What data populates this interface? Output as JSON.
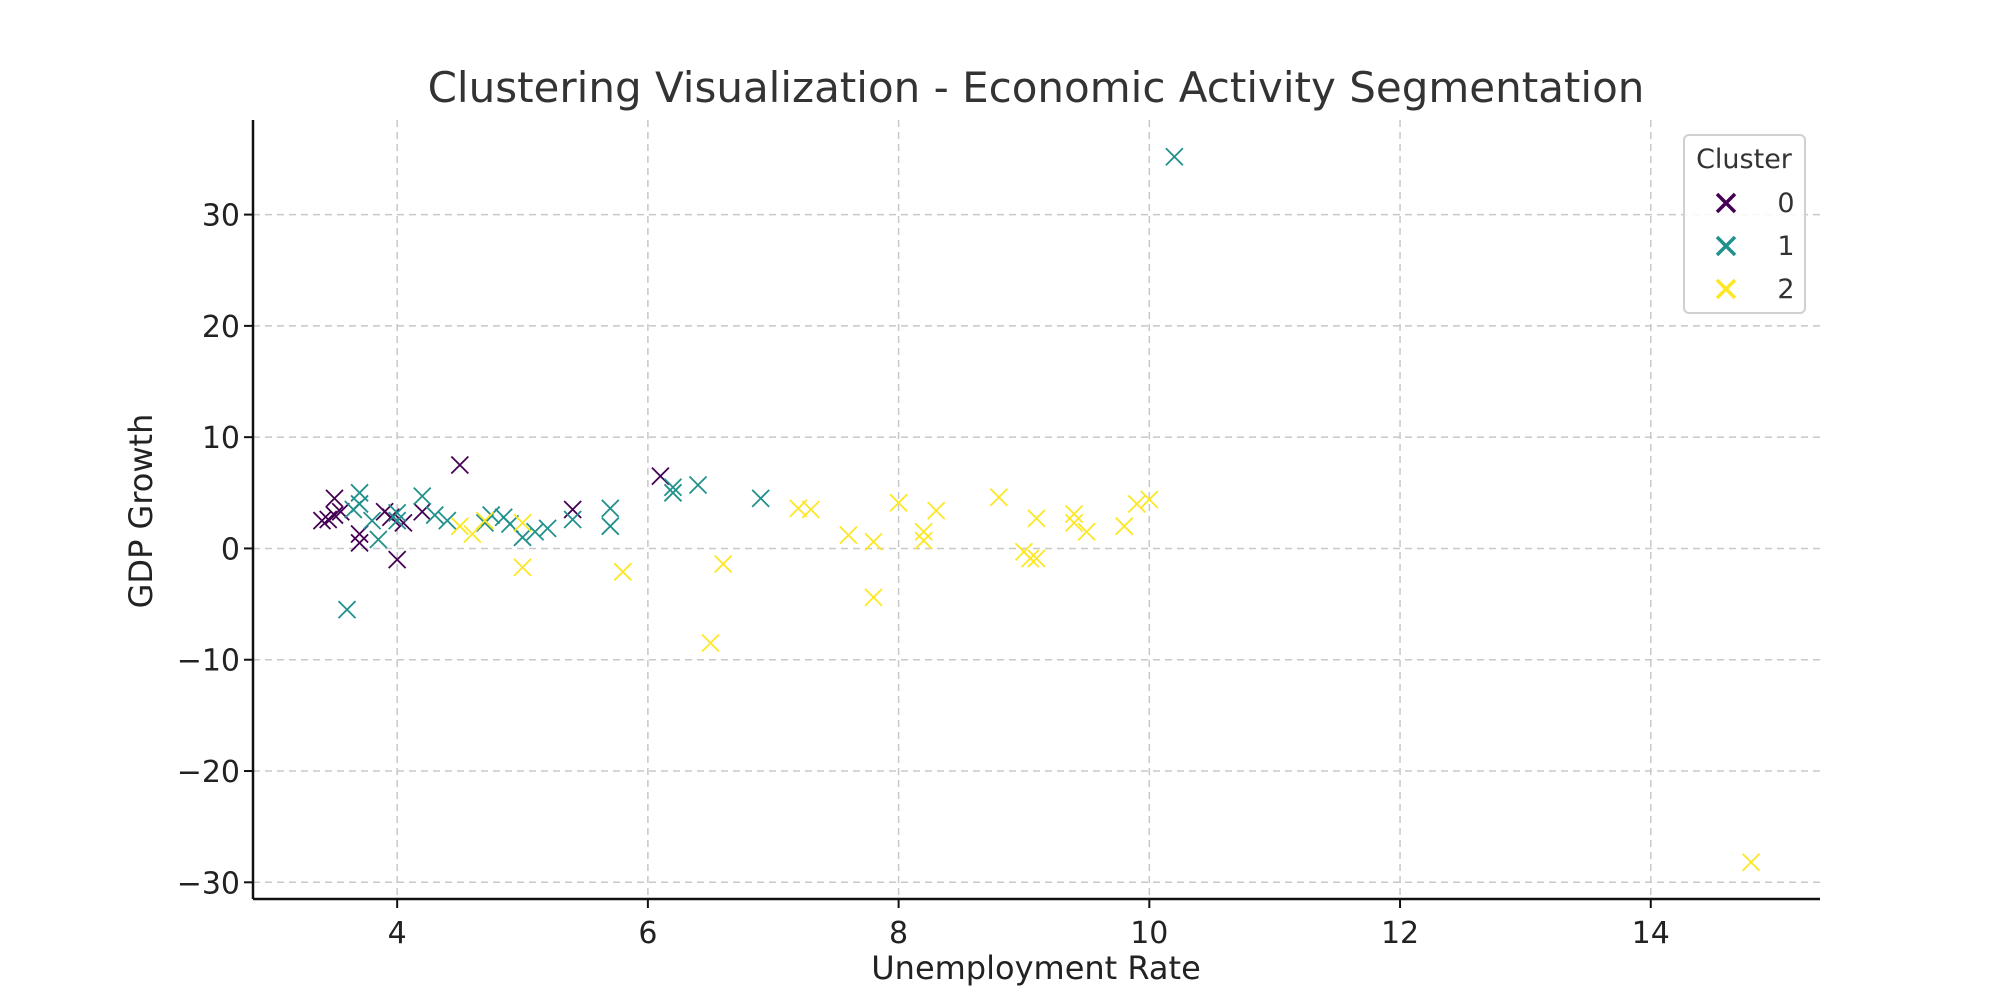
{
  "chart_data": {
    "type": "scatter",
    "title": "Clustering Visualization - Economic Activity Segmentation",
    "xlabel": "Unemployment Rate",
    "ylabel": "GDP Growth",
    "xlim": [
      2.85,
      15.35
    ],
    "ylim": [
      -31.5,
      38.5
    ],
    "xticks": [
      4,
      6,
      8,
      10,
      12,
      14
    ],
    "yticks": [
      -30,
      -20,
      -10,
      0,
      10,
      20,
      30
    ],
    "xtick_labels": [
      "4",
      "6",
      "8",
      "10",
      "12",
      "14"
    ],
    "ytick_labels": [
      "−30",
      "−20",
      "−10",
      "0",
      "10",
      "20",
      "30"
    ],
    "grid": true,
    "marker": "x",
    "legend": {
      "title": "Cluster",
      "position": "top-right"
    },
    "series": [
      {
        "name": "0",
        "color": "#440154",
        "points": [
          [
            3.4,
            2.5
          ],
          [
            3.45,
            2.6
          ],
          [
            3.5,
            4.5
          ],
          [
            3.5,
            3.0
          ],
          [
            3.55,
            3.3
          ],
          [
            3.7,
            0.5
          ],
          [
            3.7,
            1.3
          ],
          [
            3.9,
            3.3
          ],
          [
            3.95,
            2.8
          ],
          [
            4.0,
            -1.0
          ],
          [
            4.05,
            2.3
          ],
          [
            4.2,
            3.3
          ],
          [
            4.5,
            7.5
          ],
          [
            5.4,
            3.5
          ],
          [
            6.1,
            6.5
          ]
        ]
      },
      {
        "name": "1",
        "color": "#21918c",
        "points": [
          [
            3.6,
            -5.5
          ],
          [
            3.65,
            3.5
          ],
          [
            3.7,
            5.0
          ],
          [
            3.7,
            4.0
          ],
          [
            3.8,
            2.5
          ],
          [
            3.85,
            0.8
          ],
          [
            4.0,
            2.5
          ],
          [
            4.0,
            3.2
          ],
          [
            4.2,
            4.7
          ],
          [
            4.3,
            3.0
          ],
          [
            4.4,
            2.5
          ],
          [
            4.7,
            2.3
          ],
          [
            4.75,
            3.0
          ],
          [
            4.85,
            2.8
          ],
          [
            4.9,
            2.2
          ],
          [
            5.0,
            1.0
          ],
          [
            5.1,
            1.5
          ],
          [
            5.2,
            1.8
          ],
          [
            5.4,
            2.6
          ],
          [
            5.7,
            3.6
          ],
          [
            5.7,
            2.0
          ],
          [
            6.2,
            5.5
          ],
          [
            6.2,
            5.0
          ],
          [
            6.4,
            5.7
          ],
          [
            6.9,
            4.5
          ],
          [
            10.2,
            35.2
          ]
        ]
      },
      {
        "name": "2",
        "color": "#fde725",
        "points": [
          [
            4.5,
            2.0
          ],
          [
            4.6,
            1.3
          ],
          [
            4.7,
            2.5
          ],
          [
            5.0,
            2.3
          ],
          [
            5.0,
            -1.7
          ],
          [
            5.8,
            -2.1
          ],
          [
            6.5,
            -8.5
          ],
          [
            6.6,
            -1.4
          ],
          [
            7.2,
            3.6
          ],
          [
            7.3,
            3.5
          ],
          [
            7.6,
            1.2
          ],
          [
            7.8,
            0.6
          ],
          [
            7.8,
            -4.4
          ],
          [
            8.0,
            4.1
          ],
          [
            8.2,
            1.5
          ],
          [
            8.2,
            0.7
          ],
          [
            8.3,
            3.4
          ],
          [
            8.8,
            4.6
          ],
          [
            9.0,
            -0.3
          ],
          [
            9.05,
            -0.9
          ],
          [
            9.1,
            -0.9
          ],
          [
            9.1,
            2.7
          ],
          [
            9.4,
            3.1
          ],
          [
            9.4,
            2.3
          ],
          [
            9.5,
            1.5
          ],
          [
            9.8,
            2.0
          ],
          [
            9.9,
            4.0
          ],
          [
            10.0,
            4.4
          ],
          [
            14.8,
            -28.2
          ]
        ]
      }
    ]
  }
}
